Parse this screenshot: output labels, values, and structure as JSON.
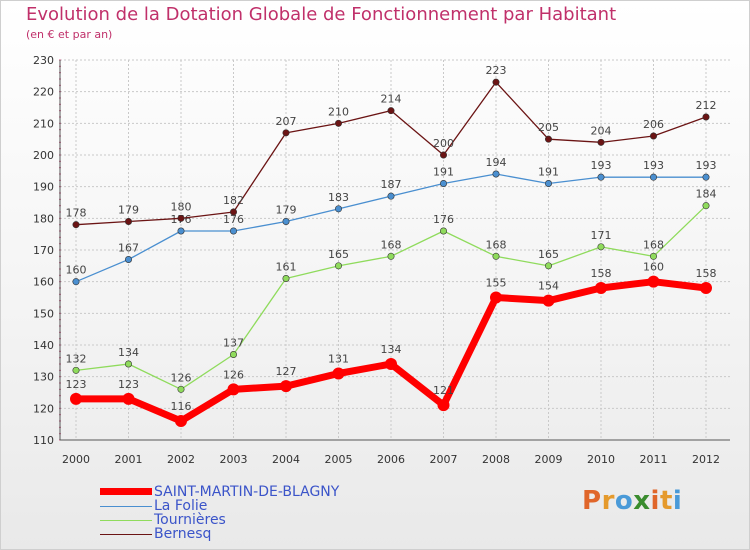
{
  "title": "Evolution de la Dotation Globale de Fonctionnement par Habitant",
  "subtitle": "(en € et par an)",
  "brand": {
    "letters": [
      "P",
      "r",
      "o",
      "x",
      "i",
      "t",
      "i"
    ],
    "colors": [
      "#e0662a",
      "#e59a2c",
      "#4a9ad8",
      "#3a8c2e",
      "#e0662a",
      "#e59a2c",
      "#4a9ad8"
    ]
  },
  "chart_data": {
    "type": "line",
    "title": "Evolution de la Dotation Globale de Fonctionnement par Habitant",
    "subtitle": "(en € et par an)",
    "x": [
      "2000",
      "2001",
      "2002",
      "2003",
      "2004",
      "2005",
      "2006",
      "2007",
      "2008",
      "2009",
      "2010",
      "2011",
      "2012"
    ],
    "ylim": [
      110,
      230
    ],
    "yticks": [
      110,
      120,
      130,
      140,
      150,
      160,
      170,
      180,
      190,
      200,
      210,
      220,
      230
    ],
    "grid": true,
    "legend_position": "bottom-left",
    "series": [
      {
        "name": "SAINT-MARTIN-DE-BLAGNY",
        "color": "#ff0000",
        "values": [
          123,
          123,
          116,
          126,
          127,
          131,
          134,
          121,
          155,
          154,
          158,
          160,
          158
        ],
        "thick": true
      },
      {
        "name": "La Folie",
        "color": "#4a8fd0",
        "values": [
          160,
          167,
          176,
          176,
          179,
          183,
          187,
          191,
          194,
          191,
          193,
          193,
          193
        ],
        "thick": false
      },
      {
        "name": "Tournières",
        "color": "#8fdb5c",
        "values": [
          132,
          134,
          126,
          137,
          161,
          165,
          168,
          176,
          168,
          165,
          171,
          168,
          184
        ],
        "thick": false
      },
      {
        "name": "Bernesq",
        "color": "#6b1414",
        "values": [
          178,
          179,
          180,
          182,
          207,
          210,
          214,
          200,
          223,
          205,
          204,
          206,
          212
        ],
        "thick": false
      }
    ]
  }
}
